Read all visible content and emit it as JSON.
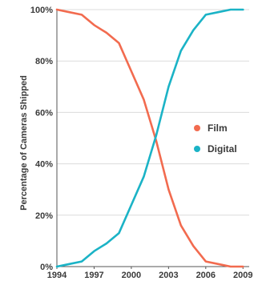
{
  "chart_data": {
    "type": "line",
    "title": "",
    "xlabel": "",
    "ylabel": "Percentage of Cameras Shipped",
    "xlim": [
      1994,
      2009.5
    ],
    "ylim": [
      0,
      100
    ],
    "x_ticks": [
      1994,
      1997,
      2000,
      2003,
      2006,
      2009
    ],
    "x_tick_labels": [
      "1994",
      "1997",
      "2000",
      "2003",
      "2006",
      "2009"
    ],
    "y_ticks": [
      0,
      20,
      40,
      60,
      80,
      100
    ],
    "y_tick_labels": [
      "0%",
      "20%",
      "40%",
      "60%",
      "80%",
      "100%"
    ],
    "grid": {
      "horizontal": true,
      "vertical": false
    },
    "legend_position": "right",
    "series": [
      {
        "name": "Film",
        "color": "#f26b4f",
        "x": [
          1994,
          1995,
          1996,
          1997,
          1998,
          1999,
          2000,
          2001,
          2002,
          2003,
          2004,
          2005,
          2006,
          2007,
          2008,
          2009
        ],
        "y": [
          100,
          99,
          98,
          94,
          91,
          87,
          76,
          65,
          49,
          30,
          16,
          8,
          2,
          1,
          0,
          0
        ]
      },
      {
        "name": "Digital",
        "color": "#1bb3c6",
        "x": [
          1994,
          1995,
          1996,
          1997,
          1998,
          1999,
          2000,
          2001,
          2002,
          2003,
          2004,
          2005,
          2006,
          2007,
          2008,
          2009
        ],
        "y": [
          0,
          1,
          2,
          6,
          9,
          13,
          24,
          35,
          51,
          70,
          84,
          92,
          98,
          99,
          100,
          100
        ]
      }
    ]
  }
}
